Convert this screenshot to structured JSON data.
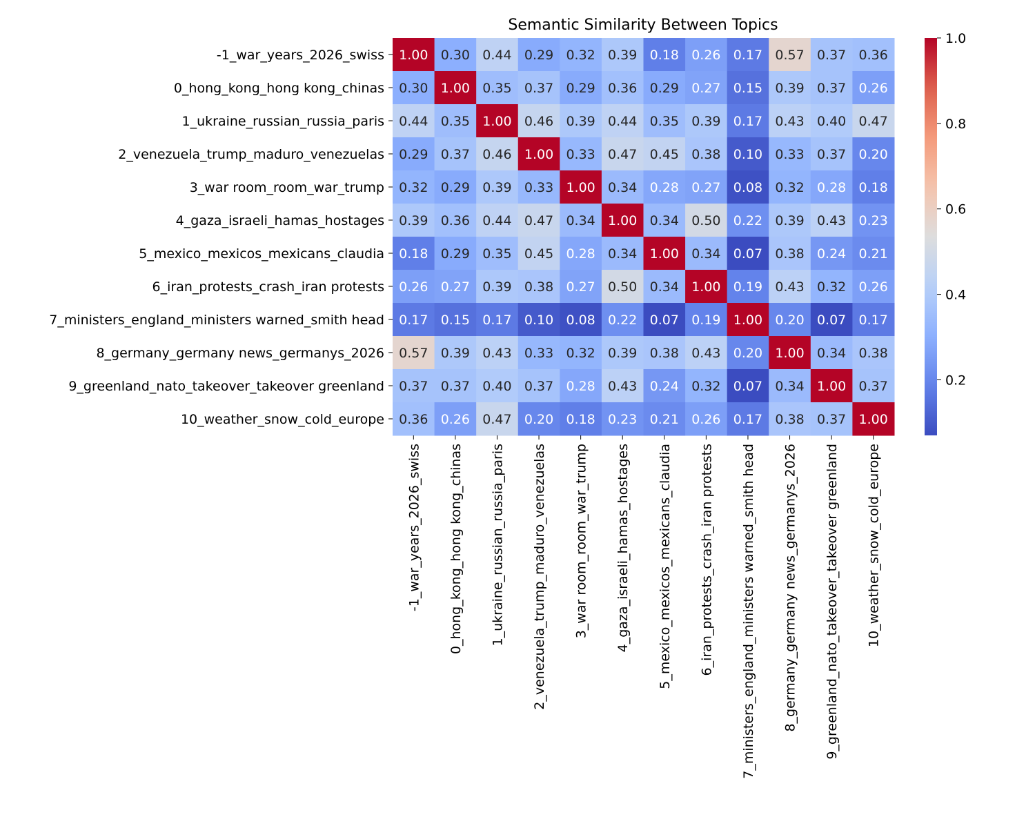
{
  "chart_data": {
    "type": "heatmap",
    "title": "Semantic Similarity Between Topics",
    "colormap": "coolwarm",
    "vmin": 0.07,
    "vmax": 1.0,
    "colorbar_ticks": [
      "0.2",
      "0.4",
      "0.6",
      "0.8",
      "1.0"
    ],
    "labels": [
      "-1_war_years_2026_swiss",
      "0_hong_kong_hong kong_chinas",
      "1_ukraine_russian_russia_paris",
      "2_venezuela_trump_maduro_venezuelas",
      "3_war room_room_war_trump",
      "4_gaza_israeli_hamas_hostages",
      "5_mexico_mexicos_mexicans_claudia",
      "6_iran_protests_crash_iran protests",
      "7_ministers_england_ministers warned_smith head",
      "8_germany_germany news_germanys_2026",
      "9_greenland_nato_takeover_takeover greenland",
      "10_weather_snow_cold_europe"
    ],
    "matrix": [
      [
        1.0,
        0.3,
        0.44,
        0.29,
        0.32,
        0.39,
        0.18,
        0.26,
        0.17,
        0.57,
        0.37,
        0.36
      ],
      [
        0.3,
        1.0,
        0.35,
        0.37,
        0.29,
        0.36,
        0.29,
        0.27,
        0.15,
        0.39,
        0.37,
        0.26
      ],
      [
        0.44,
        0.35,
        1.0,
        0.46,
        0.39,
        0.44,
        0.35,
        0.39,
        0.17,
        0.43,
        0.4,
        0.47
      ],
      [
        0.29,
        0.37,
        0.46,
        1.0,
        0.33,
        0.47,
        0.45,
        0.38,
        0.1,
        0.33,
        0.37,
        0.2
      ],
      [
        0.32,
        0.29,
        0.39,
        0.33,
        1.0,
        0.34,
        0.28,
        0.27,
        0.08,
        0.32,
        0.28,
        0.18
      ],
      [
        0.39,
        0.36,
        0.44,
        0.47,
        0.34,
        1.0,
        0.34,
        0.5,
        0.22,
        0.39,
        0.43,
        0.23
      ],
      [
        0.18,
        0.29,
        0.35,
        0.45,
        0.28,
        0.34,
        1.0,
        0.34,
        0.07,
        0.38,
        0.24,
        0.21
      ],
      [
        0.26,
        0.27,
        0.39,
        0.38,
        0.27,
        0.5,
        0.34,
        1.0,
        0.19,
        0.43,
        0.32,
        0.26
      ],
      [
        0.17,
        0.15,
        0.17,
        0.1,
        0.08,
        0.22,
        0.07,
        0.19,
        1.0,
        0.2,
        0.07,
        0.17
      ],
      [
        0.57,
        0.39,
        0.43,
        0.33,
        0.32,
        0.39,
        0.38,
        0.43,
        0.2,
        1.0,
        0.34,
        0.38
      ],
      [
        0.37,
        0.37,
        0.4,
        0.37,
        0.28,
        0.43,
        0.24,
        0.32,
        0.07,
        0.34,
        1.0,
        0.37
      ],
      [
        0.36,
        0.26,
        0.47,
        0.2,
        0.18,
        0.23,
        0.21,
        0.26,
        0.17,
        0.38,
        0.37,
        1.0
      ]
    ]
  }
}
